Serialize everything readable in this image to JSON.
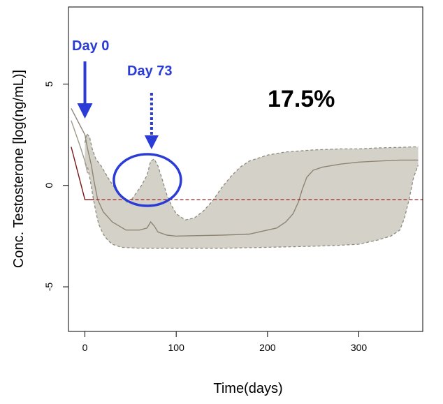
{
  "chart_data": {
    "type": "area",
    "title": "",
    "xlabel": "Time(days)",
    "ylabel": "Conc. Testosterone [log(ng/mL)]",
    "xlim": [
      -18,
      370
    ],
    "ylim": [
      -7.2,
      8.8
    ],
    "x_ticks": [
      0,
      100,
      200,
      300
    ],
    "x_tick_labels": [
      "0",
      "100",
      "200",
      "300"
    ],
    "y_ticks": [
      -5,
      0,
      5
    ],
    "y_tick_labels": [
      "-5",
      "0",
      "5"
    ],
    "grid": false,
    "legend": "none",
    "threshold": {
      "y": -0.7,
      "style": "dashed",
      "color": "#9b1c1c"
    },
    "band": {
      "color": "#d4d2c8",
      "edge_color": "#8e8a7e",
      "upper": [
        [
          0,
          2.1
        ],
        [
          2,
          2.55
        ],
        [
          5,
          2.4
        ],
        [
          8,
          1.8
        ],
        [
          12,
          1.3
        ],
        [
          18,
          0.95
        ],
        [
          25,
          0.4
        ],
        [
          30,
          0.05
        ],
        [
          36,
          -0.35
        ],
        [
          42,
          -0.65
        ],
        [
          48,
          -0.9
        ],
        [
          55,
          -0.45
        ],
        [
          62,
          0.0
        ],
        [
          68,
          0.5
        ],
        [
          72,
          1.2
        ],
        [
          76,
          1.3
        ],
        [
          80,
          0.95
        ],
        [
          85,
          0.25
        ],
        [
          90,
          -0.5
        ],
        [
          95,
          -1.0
        ],
        [
          100,
          -1.4
        ],
        [
          110,
          -1.7
        ],
        [
          120,
          -1.6
        ],
        [
          130,
          -1.25
        ],
        [
          140,
          -0.75
        ],
        [
          150,
          -0.1
        ],
        [
          160,
          0.45
        ],
        [
          170,
          0.9
        ],
        [
          180,
          1.2
        ],
        [
          200,
          1.5
        ],
        [
          220,
          1.65
        ],
        [
          250,
          1.75
        ],
        [
          280,
          1.8
        ],
        [
          300,
          1.8
        ],
        [
          320,
          1.85
        ],
        [
          340,
          1.87
        ],
        [
          360,
          1.9
        ],
        [
          365,
          1.9
        ]
      ],
      "lower": [
        [
          0,
          1.1
        ],
        [
          3,
          0.9
        ],
        [
          6,
          0.2
        ],
        [
          9,
          -0.6
        ],
        [
          12,
          -1.3
        ],
        [
          15,
          -1.9
        ],
        [
          20,
          -2.4
        ],
        [
          25,
          -2.7
        ],
        [
          30,
          -2.9
        ],
        [
          40,
          -3.05
        ],
        [
          60,
          -3.1
        ],
        [
          80,
          -3.1
        ],
        [
          100,
          -3.1
        ],
        [
          150,
          -3.1
        ],
        [
          200,
          -3.05
        ],
        [
          250,
          -3.0
        ],
        [
          280,
          -2.95
        ],
        [
          300,
          -2.9
        ],
        [
          320,
          -2.7
        ],
        [
          335,
          -2.5
        ],
        [
          345,
          -2.2
        ],
        [
          350,
          -1.6
        ],
        [
          355,
          -0.7
        ],
        [
          360,
          0.4
        ],
        [
          365,
          1.0
        ]
      ]
    },
    "series": [
      {
        "values_xy": [
          [
            -15,
            3.8
          ],
          [
            0,
            2.5
          ],
          [
            3,
            1.8
          ],
          [
            7,
            1.0
          ],
          [
            10,
            0.2
          ],
          [
            14,
            -0.7
          ],
          [
            20,
            -1.3
          ],
          [
            30,
            -1.8
          ],
          [
            45,
            -2.2
          ],
          [
            60,
            -2.2
          ],
          [
            68,
            -2.1
          ],
          [
            72,
            -1.8
          ],
          [
            76,
            -2.0
          ],
          [
            80,
            -2.3
          ],
          [
            90,
            -2.45
          ],
          [
            100,
            -2.5
          ],
          [
            150,
            -2.45
          ],
          [
            180,
            -2.4
          ],
          [
            200,
            -2.2
          ],
          [
            210,
            -2.1
          ],
          [
            220,
            -1.8
          ],
          [
            228,
            -1.4
          ],
          [
            234,
            -0.8
          ],
          [
            238,
            -0.2
          ],
          [
            243,
            0.4
          ],
          [
            250,
            0.75
          ],
          [
            260,
            0.9
          ],
          [
            280,
            1.05
          ],
          [
            300,
            1.15
          ],
          [
            320,
            1.2
          ],
          [
            345,
            1.25
          ],
          [
            365,
            1.25
          ]
        ],
        "color": "#8e8476"
      },
      {
        "values_xy": [
          [
            -15,
            3.2
          ],
          [
            -5,
            1.9
          ],
          [
            0,
            1.2
          ],
          [
            3,
            0.6
          ]
        ],
        "color": "#a09a8c"
      },
      {
        "values_xy": [
          [
            -15,
            1.9
          ],
          [
            0,
            -0.7
          ],
          [
            10,
            -0.7
          ]
        ],
        "color": "#7a1414"
      }
    ]
  },
  "annotations": {
    "day0_label": "Day 0",
    "day73_label": "Day 73",
    "percent_label": "17.5%",
    "accent_color": "#2a3bd6",
    "day0_x": 0,
    "day73_x": 73
  }
}
